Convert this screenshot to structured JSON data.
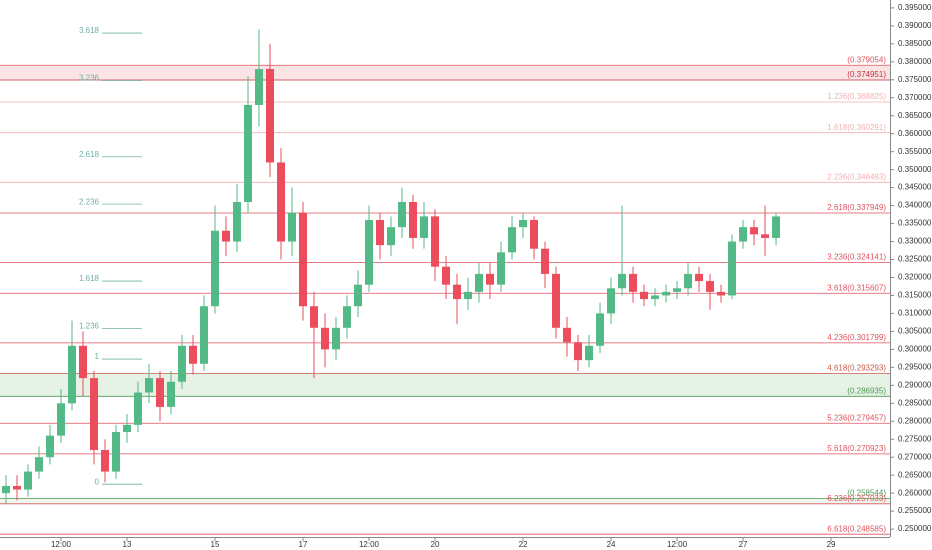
{
  "chart_data": {
    "type": "candlestick",
    "xlim": [
      10.114,
      30.34
    ],
    "ylim": [
      0.2478,
      0.3972
    ],
    "xticks": [
      {
        "value": 11.5,
        "label": "12:00"
      },
      13,
      15,
      17,
      {
        "value": 18.5,
        "label": "12:00"
      },
      20,
      22,
      24,
      {
        "value": 25.5,
        "label": "12:00"
      },
      27,
      29
    ],
    "yticks": [
      {
        "value": 0.25,
        "label": "0.250000"
      },
      {
        "value": 0.255,
        "label": "0.255000"
      },
      {
        "value": 0.26,
        "label": "0.260000"
      },
      {
        "value": 0.265,
        "label": "0.265000"
      },
      {
        "value": 0.27,
        "label": "0.270000"
      },
      {
        "value": 0.275,
        "label": "0.275000"
      },
      {
        "value": 0.28,
        "label": "0.280000"
      },
      {
        "value": 0.285,
        "label": "0.285000"
      },
      {
        "value": 0.29,
        "label": "0.290000"
      },
      {
        "value": 0.295,
        "label": "0.295000"
      },
      {
        "value": 0.3,
        "label": "0.300000"
      },
      {
        "value": 0.305,
        "label": "0.305000"
      },
      {
        "value": 0.31,
        "label": "0.310000"
      },
      {
        "value": 0.315,
        "label": "0.315000"
      },
      {
        "value": 0.32,
        "label": "0.320000"
      },
      {
        "value": 0.325,
        "label": "0.325000"
      },
      {
        "value": 0.33,
        "label": "0.330000"
      },
      {
        "value": 0.335,
        "label": "0.335000"
      },
      {
        "value": 0.34,
        "label": "0.340000"
      },
      {
        "value": 0.345,
        "label": "0.345000"
      },
      {
        "value": 0.35,
        "label": "0.350000"
      },
      {
        "value": 0.355,
        "label": "0.355000"
      },
      {
        "value": 0.36,
        "label": "0.360000"
      },
      {
        "value": 0.365,
        "label": "0.365000"
      },
      {
        "value": 0.37,
        "label": "0.370000"
      },
      {
        "value": 0.375,
        "label": "0.375000"
      },
      {
        "value": 0.38,
        "label": "0.380000"
      },
      {
        "value": 0.385,
        "label": "0.385000"
      },
      {
        "value": 0.39,
        "label": "0.390000"
      },
      {
        "value": 0.395,
        "label": "0.395000"
      }
    ],
    "grid": false,
    "up_color": "#53b987",
    "down_color": "#eb4d5c",
    "series": [
      {
        "x": [
          10.25,
          10.5,
          10.75,
          11,
          11.25,
          11.5,
          11.75,
          12,
          12.25,
          12.5,
          12.75,
          13,
          13.25,
          13.5,
          13.75,
          14,
          14.25,
          14.5,
          14.75,
          15,
          15.25,
          15.5,
          15.75,
          16,
          16.25,
          16.5,
          16.75,
          17,
          17.25,
          17.5,
          17.75,
          18,
          18.25,
          18.5,
          18.75,
          19,
          19.25,
          19.5,
          19.75,
          20,
          20.25,
          20.5,
          20.75,
          21,
          21.25,
          21.5,
          21.75,
          22,
          22.25,
          22.5,
          22.75,
          23,
          23.25,
          23.5,
          23.75,
          24,
          24.25,
          24.5,
          24.75,
          25,
          25.25,
          25.5,
          25.75,
          26,
          26.25,
          26.5,
          26.75,
          27,
          27.25,
          27.5,
          27.75
        ],
        "open": [
          0.26,
          0.262,
          0.261,
          0.266,
          0.27,
          0.276,
          0.285,
          0.301,
          0.292,
          0.272,
          0.266,
          0.277,
          0.279,
          0.288,
          0.292,
          0.284,
          0.291,
          0.301,
          0.296,
          0.312,
          0.333,
          0.33,
          0.341,
          0.368,
          0.378,
          0.352,
          0.33,
          0.338,
          0.312,
          0.306,
          0.3,
          0.306,
          0.312,
          0.318,
          0.336,
          0.329,
          0.334,
          0.341,
          0.331,
          0.337,
          0.323,
          0.318,
          0.314,
          0.316,
          0.321,
          0.318,
          0.327,
          0.334,
          0.336,
          0.328,
          0.321,
          0.306,
          0.302,
          0.297,
          0.301,
          0.31,
          0.317,
          0.321,
          0.316,
          0.314,
          0.315,
          0.316,
          0.317,
          0.321,
          0.319,
          0.316,
          0.315,
          0.33,
          0.334,
          0.332,
          0.331
        ],
        "high": [
          0.265,
          0.265,
          0.268,
          0.273,
          0.279,
          0.289,
          0.308,
          0.305,
          0.294,
          0.275,
          0.279,
          0.282,
          0.291,
          0.296,
          0.294,
          0.294,
          0.304,
          0.304,
          0.315,
          0.34,
          0.337,
          0.346,
          0.376,
          0.389,
          0.385,
          0.356,
          0.345,
          0.341,
          0.316,
          0.31,
          0.309,
          0.315,
          0.322,
          0.34,
          0.338,
          0.337,
          0.345,
          0.343,
          0.341,
          0.339,
          0.326,
          0.321,
          0.32,
          0.324,
          0.324,
          0.33,
          0.337,
          0.338,
          0.337,
          0.33,
          0.323,
          0.309,
          0.304,
          0.304,
          0.313,
          0.32,
          0.34,
          0.323,
          0.318,
          0.317,
          0.318,
          0.319,
          0.324,
          0.323,
          0.321,
          0.318,
          0.332,
          0.336,
          0.336,
          0.34,
          0.338
        ],
        "low": [
          0.257,
          0.258,
          0.259,
          0.264,
          0.268,
          0.274,
          0.283,
          0.287,
          0.268,
          0.263,
          0.264,
          0.274,
          0.277,
          0.285,
          0.28,
          0.282,
          0.289,
          0.293,
          0.294,
          0.31,
          0.326,
          0.327,
          0.338,
          0.362,
          0.348,
          0.325,
          0.326,
          0.308,
          0.292,
          0.295,
          0.297,
          0.303,
          0.309,
          0.316,
          0.325,
          0.326,
          0.331,
          0.328,
          0.328,
          0.319,
          0.314,
          0.307,
          0.311,
          0.313,
          0.314,
          0.316,
          0.325,
          0.331,
          0.325,
          0.317,
          0.303,
          0.298,
          0.294,
          0.295,
          0.299,
          0.307,
          0.315,
          0.313,
          0.312,
          0.312,
          0.313,
          0.314,
          0.315,
          0.316,
          0.311,
          0.313,
          0.314,
          0.328,
          0.329,
          0.326,
          0.329
        ],
        "close": [
          0.262,
          0.261,
          0.266,
          0.27,
          0.276,
          0.285,
          0.301,
          0.292,
          0.272,
          0.266,
          0.277,
          0.279,
          0.288,
          0.292,
          0.284,
          0.291,
          0.301,
          0.296,
          0.312,
          0.333,
          0.33,
          0.341,
          0.368,
          0.378,
          0.352,
          0.33,
          0.338,
          0.312,
          0.306,
          0.3,
          0.306,
          0.312,
          0.318,
          0.336,
          0.329,
          0.334,
          0.341,
          0.331,
          0.337,
          0.323,
          0.318,
          0.314,
          0.316,
          0.321,
          0.318,
          0.327,
          0.334,
          0.336,
          0.328,
          0.321,
          0.306,
          0.302,
          0.297,
          0.301,
          0.31,
          0.317,
          0.321,
          0.316,
          0.314,
          0.315,
          0.316,
          0.317,
          0.321,
          0.319,
          0.316,
          0.315,
          0.33,
          0.334,
          0.332,
          0.331,
          0.337
        ]
      }
    ],
    "zones": [
      {
        "from": 0.374951,
        "to": 0.379054,
        "color": "#fbe4e5"
      },
      {
        "from": 0.286935,
        "to": 0.293293,
        "color": "#e7f2e6"
      },
      {
        "from": 0.257033,
        "to": 0.258544,
        "color": "#eef6ee"
      }
    ],
    "right_levels": [
      {
        "label": "(0.379054)",
        "value": 0.379054,
        "color": "#e0525a"
      },
      {
        "label": "(0.374951)",
        "value": 0.374951,
        "color": "#c0303a"
      },
      {
        "label": "1.236(0.368825)",
        "value": 0.368825,
        "color": "#f3b0b3"
      },
      {
        "label": "1.618(0.360291)",
        "value": 0.360291,
        "color": "#f3b0b3"
      },
      {
        "label": "2.236(0.346483)",
        "value": 0.346483,
        "color": "#f3b0b3"
      },
      {
        "label": "2.618(0.337949)",
        "value": 0.337949,
        "color": "#e0525a"
      },
      {
        "label": "3.236(0.324141)",
        "value": 0.324141,
        "color": "#e0525a"
      },
      {
        "label": "3.618(0.315607)",
        "value": 0.315607,
        "color": "#e0525a"
      },
      {
        "label": "4.236(0.301799)",
        "value": 0.301799,
        "color": "#e0525a"
      },
      {
        "label": "4.618(0.293293)",
        "value": 0.293293,
        "color": "#c85a4a"
      },
      {
        "label": "(0.286935)",
        "value": 0.286935,
        "color": "#4e9a52"
      },
      {
        "label": "5.236(0.279457)",
        "value": 0.279457,
        "color": "#e0525a"
      },
      {
        "label": "5.618(0.270923)",
        "value": 0.270923,
        "color": "#e0525a"
      },
      {
        "label": "(0.258544)",
        "value": 0.258544,
        "color": "#4e9a52"
      },
      {
        "label": "6.236(0.257033)",
        "value": 0.257033,
        "color": "#e0525a"
      },
      {
        "label": "6.618(0.248585)",
        "value": 0.248585,
        "color": "#e0525a"
      }
    ],
    "left_color": "#6fb0a8",
    "left_levels": [
      {
        "ratio": 3.618,
        "value": 0.388
      },
      {
        "ratio": 3.236,
        "value": 0.3748
      },
      {
        "ratio": 2.618,
        "value": 0.3536
      },
      {
        "ratio": 2.236,
        "value": 0.3404
      },
      {
        "ratio": 1.618,
        "value": 0.319
      },
      {
        "ratio": 1.236,
        "value": 0.3058
      },
      {
        "ratio": 1,
        "value": 0.2973
      },
      {
        "ratio": 0,
        "value": 0.2625
      }
    ]
  }
}
